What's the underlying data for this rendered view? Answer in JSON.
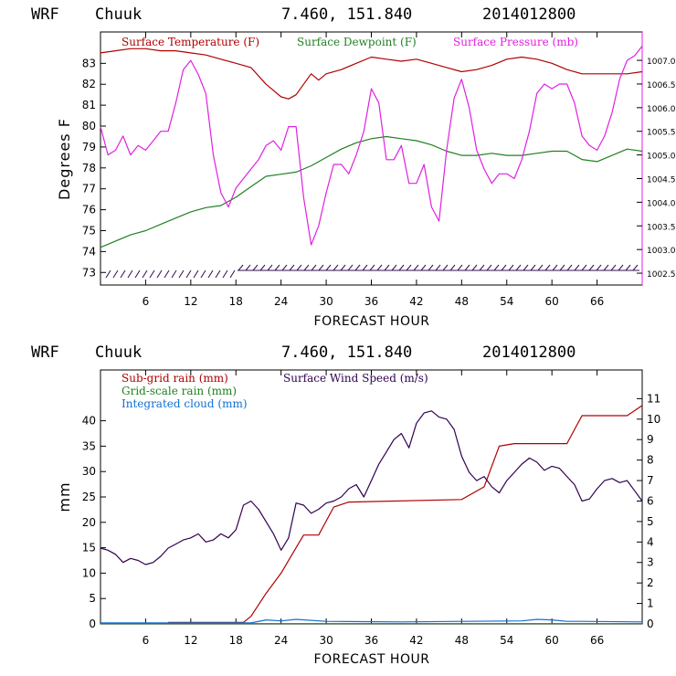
{
  "colors": {
    "temperature": "#b00000",
    "dewpoint": "#208020",
    "pressure": "#e020e0",
    "subgrid_rain": "#b00000",
    "gridscale_rain": "#208020",
    "cloud": "#1070d0",
    "wind": "#300050",
    "barbs": "#301050"
  },
  "chart_data": [
    {
      "type": "line",
      "header": {
        "model": "WRF",
        "station": "Chuuk",
        "coords": "7.460, 151.840",
        "init": "2014012800"
      },
      "xlabel": "FORECAST HOUR",
      "ylabel": "Degrees F",
      "xlim": [
        0,
        72
      ],
      "xticks": [
        6,
        12,
        18,
        24,
        30,
        36,
        42,
        48,
        54,
        60,
        66
      ],
      "xtick_labels": [
        "6",
        "12",
        "18",
        "24",
        "30",
        "36",
        "42",
        "48",
        "54",
        "60",
        "66"
      ],
      "ylim": [
        72.4,
        84.5
      ],
      "yticks": [
        73,
        74,
        75,
        76,
        77,
        78,
        79,
        80,
        81,
        82,
        83
      ],
      "ytick_labels": [
        "73",
        "74",
        "75",
        "76",
        "77",
        "78",
        "79",
        "80",
        "81",
        "82",
        "83"
      ],
      "y2lim": [
        1002.25,
        1007.6
      ],
      "y2ticks": [
        1002.5,
        1003.0,
        1003.5,
        1004.0,
        1004.5,
        1005.0,
        1005.5,
        1006.0,
        1006.5,
        1007.0
      ],
      "y2tick_labels": [
        "1002.5",
        "1003.0",
        "1003.5",
        "1004.0",
        "1004.5",
        "1005.0",
        "1005.5",
        "1006.0",
        "1006.5",
        "1007.0"
      ],
      "legend": [
        "Surface Temperature (F)",
        "Surface Dewpoint (F)",
        "Surface Pressure (mb)"
      ],
      "series": [
        {
          "name": "Surface Temperature (F)",
          "axis": "left",
          "x": [
            0,
            2,
            4,
            6,
            8,
            10,
            12,
            14,
            16,
            18,
            20,
            22,
            24,
            25,
            26,
            28,
            29,
            30,
            32,
            34,
            36,
            38,
            40,
            42,
            44,
            46,
            48,
            50,
            52,
            54,
            56,
            58,
            60,
            62,
            64,
            66,
            68,
            70,
            72
          ],
          "y": [
            83.5,
            83.6,
            83.7,
            83.7,
            83.6,
            83.6,
            83.5,
            83.4,
            83.2,
            83.0,
            82.8,
            82.0,
            81.4,
            81.3,
            81.5,
            82.5,
            82.2,
            82.5,
            82.7,
            83.0,
            83.3,
            83.2,
            83.1,
            83.2,
            83.0,
            82.8,
            82.6,
            82.7,
            82.9,
            83.2,
            83.3,
            83.2,
            83.0,
            82.7,
            82.5,
            82.5,
            82.5,
            82.5,
            82.6
          ]
        },
        {
          "name": "Surface Dewpoint (F)",
          "axis": "left",
          "x": [
            0,
            2,
            4,
            6,
            8,
            10,
            12,
            14,
            16,
            18,
            20,
            22,
            24,
            26,
            28,
            30,
            32,
            34,
            36,
            38,
            40,
            42,
            44,
            46,
            48,
            50,
            52,
            54,
            56,
            58,
            60,
            62,
            64,
            66,
            68,
            70,
            72
          ],
          "y": [
            74.2,
            74.5,
            74.8,
            75.0,
            75.3,
            75.6,
            75.9,
            76.1,
            76.2,
            76.6,
            77.1,
            77.6,
            77.7,
            77.8,
            78.1,
            78.5,
            78.9,
            79.2,
            79.4,
            79.5,
            79.4,
            79.3,
            79.1,
            78.8,
            78.6,
            78.6,
            78.7,
            78.6,
            78.6,
            78.7,
            78.8,
            78.8,
            78.4,
            78.3,
            78.6,
            78.9,
            78.8
          ]
        },
        {
          "name": "Surface Pressure (mb)",
          "axis": "right",
          "x": [
            0,
            1,
            2,
            3,
            4,
            5,
            6,
            7,
            8,
            9,
            10,
            11,
            12,
            13,
            14,
            15,
            16,
            17,
            18,
            19,
            20,
            21,
            22,
            23,
            24,
            25,
            26,
            27,
            28,
            29,
            30,
            31,
            32,
            33,
            34,
            35,
            36,
            37,
            38,
            39,
            40,
            41,
            42,
            43,
            44,
            45,
            46,
            47,
            48,
            49,
            50,
            51,
            52,
            53,
            54,
            55,
            56,
            57,
            58,
            59,
            60,
            61,
            62,
            63,
            64,
            65,
            66,
            67,
            68,
            69,
            70,
            71,
            72
          ],
          "y": [
            1005.6,
            1005.0,
            1005.1,
            1005.4,
            1005.0,
            1005.2,
            1005.1,
            1005.3,
            1005.5,
            1005.5,
            1006.1,
            1006.8,
            1007.0,
            1006.7,
            1006.3,
            1005.0,
            1004.2,
            1003.9,
            1004.3,
            1004.5,
            1004.7,
            1004.9,
            1005.2,
            1005.3,
            1005.1,
            1005.6,
            1005.6,
            1004.1,
            1003.1,
            1003.5,
            1004.2,
            1004.8,
            1004.8,
            1004.6,
            1005.0,
            1005.5,
            1006.4,
            1006.1,
            1004.9,
            1004.9,
            1005.2,
            1004.4,
            1004.4,
            1004.8,
            1003.9,
            1003.6,
            1005.1,
            1006.2,
            1006.6,
            1006.0,
            1005.1,
            1004.7,
            1004.4,
            1004.6,
            1004.6,
            1004.5,
            1004.9,
            1005.5,
            1006.3,
            1006.5,
            1006.4,
            1006.5,
            1006.5,
            1006.1,
            1005.4,
            1005.2,
            1005.1,
            1005.4,
            1005.9,
            1006.6,
            1007.0,
            1007.1,
            1007.3
          ]
        }
      ]
    },
    {
      "type": "line",
      "header": {
        "model": "WRF",
        "station": "Chuuk",
        "coords": "7.460, 151.840",
        "init": "2014012800"
      },
      "xlabel": "FORECAST HOUR",
      "ylabel": "mm",
      "xlim": [
        0,
        72
      ],
      "xticks": [
        6,
        12,
        18,
        24,
        30,
        36,
        42,
        48,
        54,
        60,
        66
      ],
      "xtick_labels": [
        "6",
        "12",
        "18",
        "24",
        "30",
        "36",
        "42",
        "48",
        "54",
        "60",
        "66"
      ],
      "ylim": [
        0,
        50
      ],
      "yticks": [
        0,
        5,
        10,
        15,
        20,
        25,
        30,
        35,
        40
      ],
      "ytick_labels": [
        "0",
        "5",
        "10",
        "15",
        "20",
        "25",
        "30",
        "35",
        "40"
      ],
      "y2lim": [
        0,
        12.4
      ],
      "y2ticks": [
        0,
        1,
        2,
        3,
        4,
        5,
        6,
        7,
        8,
        9,
        10,
        11
      ],
      "y2tick_labels": [
        "0",
        "1",
        "2",
        "3",
        "4",
        "5",
        "6",
        "7",
        "8",
        "9",
        "10",
        "11"
      ],
      "legend": [
        "Sub-grid rain (mm)",
        "Grid-scale rain (mm)",
        "Integrated cloud (mm)",
        "Surface Wind Speed (m/s)"
      ],
      "series": [
        {
          "name": "Sub-grid rain (mm)",
          "axis": "left",
          "x": [
            9,
            19,
            20,
            22,
            24,
            26,
            27,
            29,
            31,
            33,
            48,
            51,
            53,
            55,
            62,
            64,
            66,
            70,
            72
          ],
          "y": [
            0.3,
            0.3,
            1.5,
            6,
            10,
            15,
            17.5,
            17.5,
            23,
            24,
            24.5,
            27,
            35,
            35.5,
            35.5,
            41,
            41,
            41,
            43
          ]
        },
        {
          "name": "Grid-scale rain (mm)",
          "axis": "left",
          "x": [
            0,
            72
          ],
          "y": [
            0.05,
            0.05
          ]
        },
        {
          "name": "Integrated cloud (mm)",
          "axis": "left",
          "x": [
            0,
            20,
            22,
            24,
            26,
            30,
            40,
            48,
            56,
            58,
            60,
            62,
            64,
            72
          ],
          "y": [
            0.2,
            0.2,
            0.8,
            0.6,
            0.9,
            0.5,
            0.4,
            0.5,
            0.6,
            0.9,
            0.8,
            0.5,
            0.5,
            0.4
          ]
        },
        {
          "name": "Surface Wind Speed (m/s)",
          "axis": "right",
          "x": [
            0,
            1,
            2,
            3,
            4,
            5,
            6,
            7,
            8,
            9,
            10,
            11,
            12,
            13,
            14,
            15,
            16,
            17,
            18,
            19,
            20,
            21,
            22,
            23,
            24,
            25,
            26,
            27,
            28,
            29,
            30,
            31,
            32,
            33,
            34,
            35,
            36,
            37,
            38,
            39,
            40,
            41,
            42,
            43,
            44,
            45,
            46,
            47,
            48,
            49,
            50,
            51,
            52,
            53,
            54,
            55,
            56,
            57,
            58,
            59,
            60,
            61,
            62,
            63,
            64,
            65,
            66,
            67,
            68,
            69,
            70,
            71,
            72
          ],
          "y": [
            3.7,
            3.6,
            3.4,
            3.0,
            3.2,
            3.1,
            2.9,
            3.0,
            3.3,
            3.7,
            3.9,
            4.1,
            4.2,
            4.4,
            4.0,
            4.1,
            4.4,
            4.2,
            4.6,
            5.8,
            6.0,
            5.6,
            5.0,
            4.4,
            3.6,
            4.2,
            5.9,
            5.8,
            5.4,
            5.6,
            5.9,
            6.0,
            6.2,
            6.6,
            6.8,
            6.2,
            7.0,
            7.8,
            8.4,
            9.0,
            9.3,
            8.6,
            9.8,
            10.3,
            10.4,
            10.1,
            10.0,
            9.5,
            8.2,
            7.4,
            7.0,
            7.2,
            6.7,
            6.4,
            7.0,
            7.4,
            7.8,
            8.1,
            7.9,
            7.5,
            7.7,
            7.6,
            7.2,
            6.8,
            6.0,
            6.1,
            6.6,
            7.0,
            7.1,
            6.9,
            7.0,
            6.5,
            6.0
          ]
        }
      ]
    }
  ]
}
